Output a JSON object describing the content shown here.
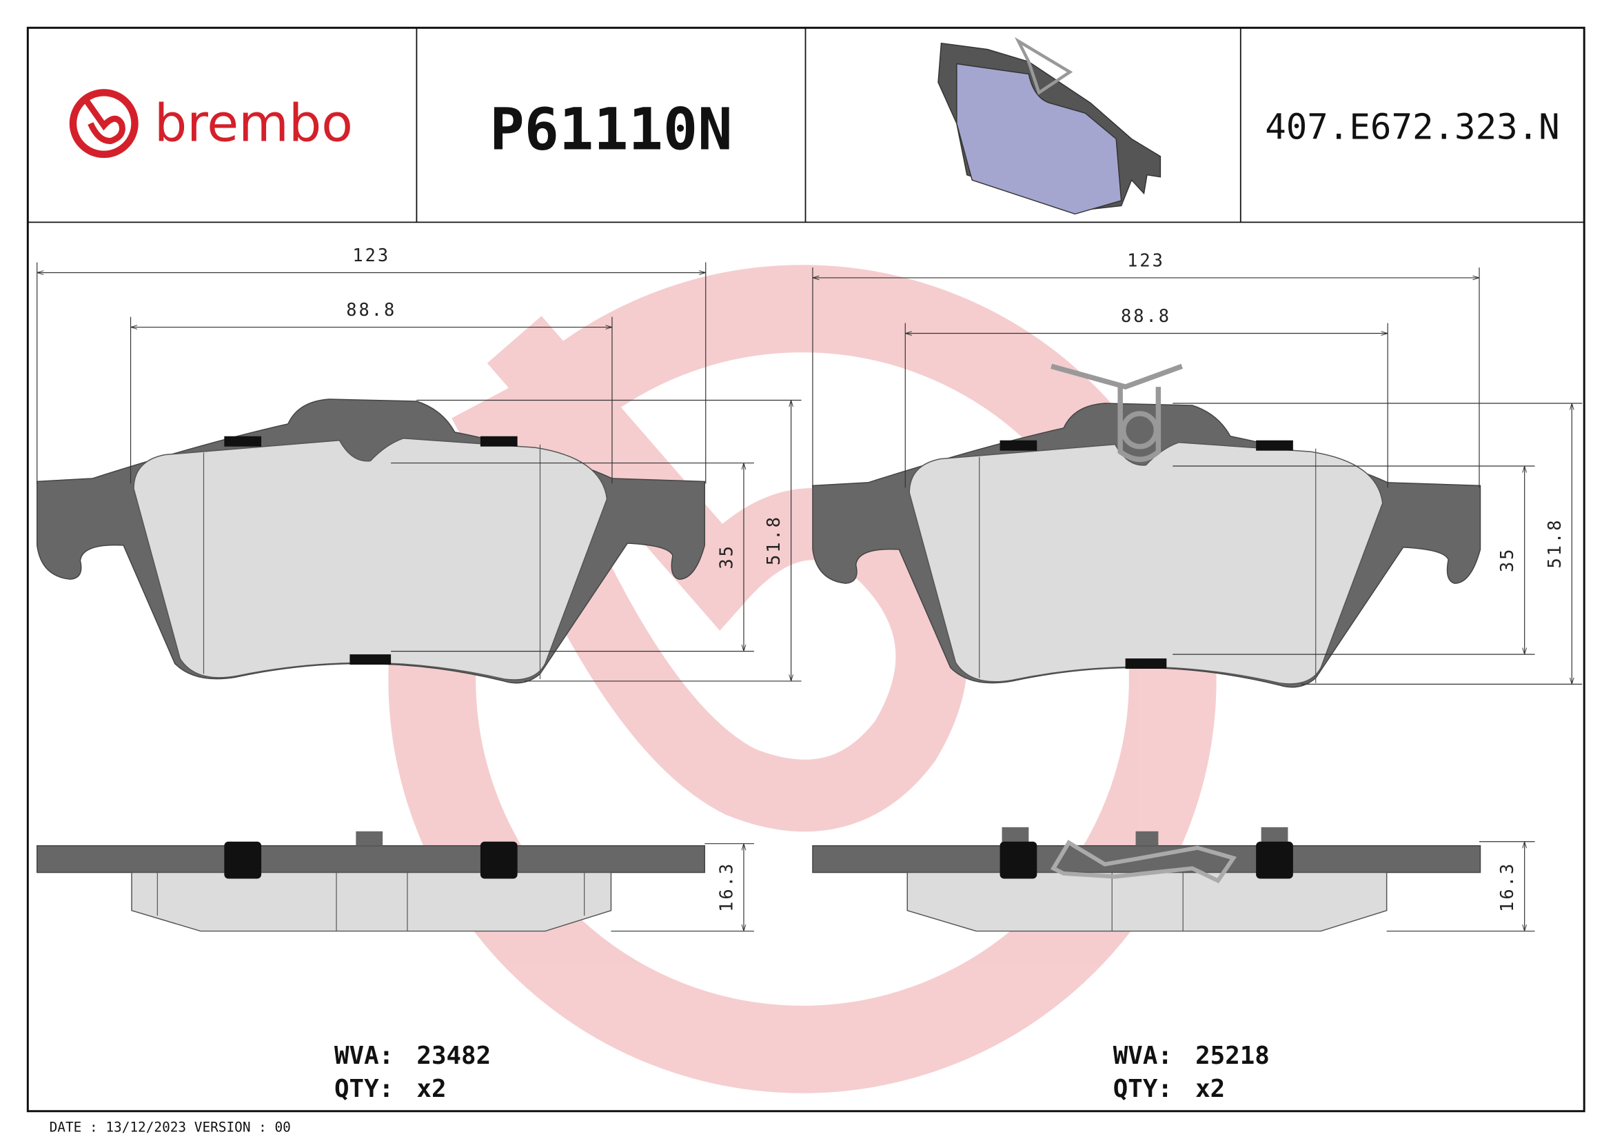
{
  "header": {
    "brand": "brembo",
    "part_number": "P61110N",
    "reference": "407.E672.323.N"
  },
  "views": [
    {
      "dimensions": {
        "width": "123",
        "inner_width": "88.8",
        "inner_height": "35",
        "height": "51.8",
        "thickness": "16.3"
      },
      "wva_label": "WVA:",
      "wva": "23482",
      "qty_label": "QTY:",
      "qty": "x2"
    },
    {
      "dimensions": {
        "width": "123",
        "inner_width": "88.8",
        "inner_height": "35",
        "height": "51.8",
        "thickness": "16.3"
      },
      "wva_label": "WVA:",
      "wva": "25218",
      "qty_label": "QTY:",
      "qty": "x2"
    }
  ],
  "footer": "DATE : 13/12/2023 VERSION : 00"
}
